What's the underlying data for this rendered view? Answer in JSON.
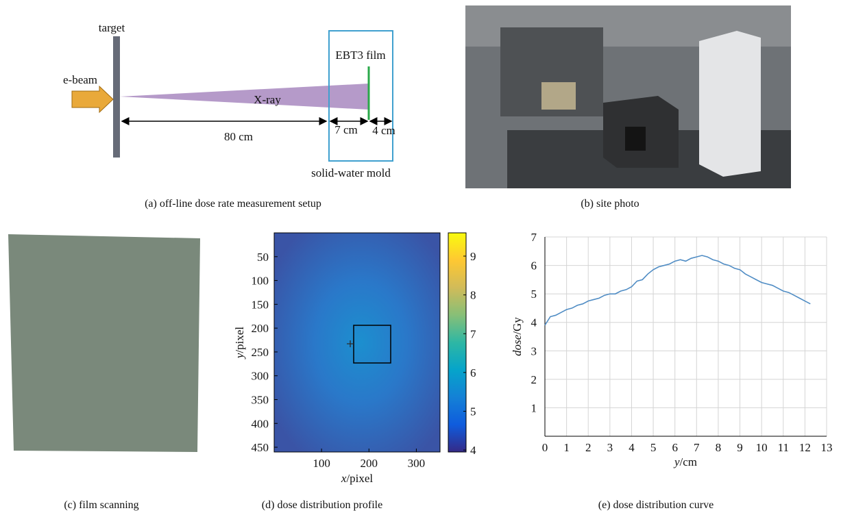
{
  "diagram": {
    "target": "target",
    "ebeam": "e-beam",
    "xray": "X-ray",
    "film": "EBT3 film",
    "d80": "80 cm",
    "d7": "7 cm",
    "d4": "4 cm",
    "mold": "solid-water mold"
  },
  "captions": [
    "(a) off-line dose rate measurement setup",
    "(b) site photo",
    "(c) film scanning",
    "(d) dose distribution profile",
    "(e) dose distribution curve"
  ],
  "chart_data": [
    {
      "type": "heatmap",
      "xlabel": {
        "var": "x",
        "unit": "/pixel"
      },
      "ylabel": {
        "var": "y",
        "unit": "/pixel"
      },
      "xlim": [
        0,
        350
      ],
      "xticks": [
        100,
        200,
        300
      ],
      "ylim": [
        0,
        460
      ],
      "yticks": [
        50,
        100,
        150,
        200,
        250,
        300,
        350,
        400,
        450
      ],
      "clim": [
        3.95,
        9.6
      ],
      "cticks": [
        4,
        5,
        6,
        7,
        8,
        9
      ],
      "colormap": "parula"
    },
    {
      "type": "line",
      "xlabel": {
        "var": "y",
        "unit": "/cm"
      },
      "ylabel": {
        "var": "dose",
        "unit": "/Gy"
      },
      "x": [
        0,
        0.25,
        0.5,
        0.75,
        1,
        1.25,
        1.5,
        1.75,
        2,
        2.25,
        2.5,
        2.75,
        3,
        3.25,
        3.5,
        3.75,
        4,
        4.25,
        4.5,
        4.75,
        5,
        5.25,
        5.5,
        5.75,
        6,
        6.25,
        6.5,
        6.75,
        7,
        7.25,
        7.5,
        7.75,
        8,
        8.25,
        8.5,
        8.75,
        9,
        9.25,
        9.5,
        9.75,
        10,
        10.25,
        10.5,
        10.75,
        11,
        11.25,
        11.5,
        11.75,
        12,
        12.25
      ],
      "series": [
        {
          "color": "#4f8cc4",
          "values": [
            3.9,
            4.2,
            4.25,
            4.35,
            4.45,
            4.5,
            4.6,
            4.65,
            4.75,
            4.8,
            4.85,
            4.95,
            5.0,
            5.0,
            5.1,
            5.15,
            5.25,
            5.45,
            5.5,
            5.7,
            5.85,
            5.95,
            6.0,
            6.05,
            6.15,
            6.2,
            6.15,
            6.25,
            6.3,
            6.35,
            6.3,
            6.2,
            6.15,
            6.05,
            6.0,
            5.9,
            5.85,
            5.7,
            5.6,
            5.5,
            5.4,
            5.35,
            5.3,
            5.2,
            5.1,
            5.05,
            4.95,
            4.85,
            4.75,
            4.65
          ]
        }
      ],
      "xlim": [
        0,
        13
      ],
      "xticks": [
        0,
        1,
        2,
        3,
        4,
        5,
        6,
        7,
        8,
        9,
        10,
        11,
        12,
        13
      ],
      "ylim": [
        0,
        7
      ],
      "yticks": [
        1,
        2,
        3,
        4,
        5,
        6,
        7
      ],
      "grid": true
    }
  ]
}
